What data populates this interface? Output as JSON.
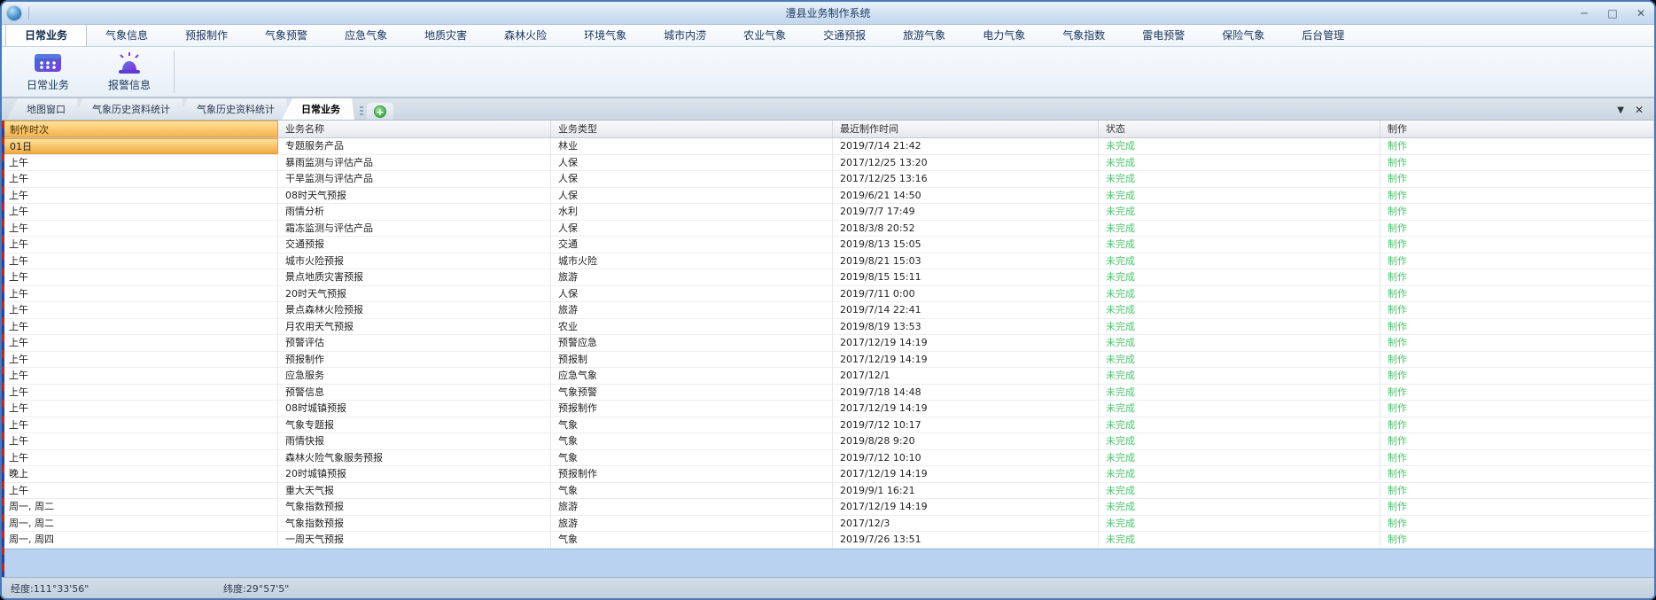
{
  "window": {
    "title": "澧县业务制作系统",
    "minimize_glyph": "─",
    "maximize_glyph": "□",
    "close_glyph": "✕"
  },
  "menu_items": [
    {
      "label": "日常业务",
      "active": true
    },
    {
      "label": "气象信息",
      "active": false
    },
    {
      "label": "预报制作",
      "active": false
    },
    {
      "label": "气象预警",
      "active": false
    },
    {
      "label": "应急气象",
      "active": false
    },
    {
      "label": "地质灾害",
      "active": false
    },
    {
      "label": "森林火险",
      "active": false
    },
    {
      "label": "环境气象",
      "active": false
    },
    {
      "label": "城市内涝",
      "active": false
    },
    {
      "label": "农业气象",
      "active": false
    },
    {
      "label": "交通预报",
      "active": false
    },
    {
      "label": "旅游气象",
      "active": false
    },
    {
      "label": "电力气象",
      "active": false
    },
    {
      "label": "气象指数",
      "active": false
    },
    {
      "label": "雷电预警",
      "active": false
    },
    {
      "label": "保险气象",
      "active": false
    },
    {
      "label": "后台管理",
      "active": false
    }
  ],
  "toolbar": {
    "buttons": [
      {
        "label": "日常业务",
        "icon": "calendar-grid-icon"
      },
      {
        "label": "报警信息",
        "icon": "alarm-siren-icon"
      }
    ]
  },
  "doc_tabs": {
    "tabs": [
      {
        "label": "地图窗口",
        "active": false
      },
      {
        "label": "气象历史资料统计",
        "active": false
      },
      {
        "label": "气象历史资料统计",
        "active": false
      },
      {
        "label": "日常业务",
        "active": true
      }
    ],
    "add_glyph": "+",
    "collapse_glyph": "▼",
    "close_glyph": "✕"
  },
  "table": {
    "columns": [
      "制作时次",
      "业务名称",
      "业务类型",
      "最近制作时间",
      "状态",
      "制作"
    ],
    "rows": [
      {
        "time": "01日",
        "name": "专题服务产品",
        "type": "林业",
        "last": "2019/7/14 21:42",
        "status": "未完成",
        "action": "制作"
      },
      {
        "time": "上午",
        "name": "暴雨监测与评估产品",
        "type": "人保",
        "last": "2017/12/25 13:20",
        "status": "未完成",
        "action": "制作"
      },
      {
        "time": "上午",
        "name": "干旱监测与评估产品",
        "type": "人保",
        "last": "2017/12/25 13:16",
        "status": "未完成",
        "action": "制作"
      },
      {
        "time": "上午",
        "name": "08时天气预报",
        "type": "人保",
        "last": "2019/6/21 14:50",
        "status": "未完成",
        "action": "制作"
      },
      {
        "time": "上午",
        "name": "雨情分析",
        "type": "水利",
        "last": "2019/7/7 17:49",
        "status": "未完成",
        "action": "制作"
      },
      {
        "time": "上午",
        "name": "霜冻监测与评估产品",
        "type": "人保",
        "last": "2018/3/8 20:52",
        "status": "未完成",
        "action": "制作"
      },
      {
        "time": "上午",
        "name": "交通预报",
        "type": "交通",
        "last": "2019/8/13 15:05",
        "status": "未完成",
        "action": "制作"
      },
      {
        "time": "上午",
        "name": "城市火险预报",
        "type": "城市火险",
        "last": "2019/8/21 15:03",
        "status": "未完成",
        "action": "制作"
      },
      {
        "time": "上午",
        "name": "景点地质灾害预报",
        "type": "旅游",
        "last": "2019/8/15 15:11",
        "status": "未完成",
        "action": "制作"
      },
      {
        "time": "上午",
        "name": "20时天气预报",
        "type": "人保",
        "last": "2019/7/11 0:00",
        "status": "未完成",
        "action": "制作"
      },
      {
        "time": "上午",
        "name": "景点森林火险预报",
        "type": "旅游",
        "last": "2019/7/14 22:41",
        "status": "未完成",
        "action": "制作"
      },
      {
        "time": "上午",
        "name": "月农用天气预报",
        "type": "农业",
        "last": "2019/8/19 13:53",
        "status": "未完成",
        "action": "制作"
      },
      {
        "time": "上午",
        "name": "预警评估",
        "type": "预警应急",
        "last": "2017/12/19 14:19",
        "status": "未完成",
        "action": "制作"
      },
      {
        "time": "上午",
        "name": "预报制作",
        "type": "预报制",
        "last": "2017/12/19 14:19",
        "status": "未完成",
        "action": "制作"
      },
      {
        "time": "上午",
        "name": "应急服务",
        "type": "应急气象",
        "last": "2017/12/1",
        "status": "未完成",
        "action": "制作"
      },
      {
        "time": "上午",
        "name": "预警信息",
        "type": "气象预警",
        "last": "2019/7/18 14:48",
        "status": "未完成",
        "action": "制作"
      },
      {
        "time": "上午",
        "name": "08时城镇预报",
        "type": "预报制作",
        "last": "2017/12/19 14:19",
        "status": "未完成",
        "action": "制作"
      },
      {
        "time": "上午",
        "name": "气象专题报",
        "type": "气象",
        "last": "2019/7/12 10:17",
        "status": "未完成",
        "action": "制作"
      },
      {
        "time": "上午",
        "name": "雨情快报",
        "type": "气象",
        "last": "2019/8/28 9:20",
        "status": "未完成",
        "action": "制作"
      },
      {
        "time": "上午",
        "name": "森林火险气象服务预报",
        "type": "气象",
        "last": "2019/7/12 10:10",
        "status": "未完成",
        "action": "制作"
      },
      {
        "time": "晚上",
        "name": "20时城镇预报",
        "type": "预报制作",
        "last": "2017/12/19 14:19",
        "status": "未完成",
        "action": "制作"
      },
      {
        "time": "上午",
        "name": "重大天气报",
        "type": "气象",
        "last": "2019/9/1 16:21",
        "status": "未完成",
        "action": "制作"
      },
      {
        "time": "周一, 周二",
        "name": "气象指数预报",
        "type": "旅游",
        "last": "2017/12/19 14:19",
        "status": "未完成",
        "action": "制作"
      },
      {
        "time": "周一, 周二",
        "name": "气象指数预报",
        "type": "旅游",
        "last": "2017/12/3",
        "status": "未完成",
        "action": "制作"
      },
      {
        "time": "周一, 周四",
        "name": "一周天气预报",
        "type": "气象",
        "last": "2019/7/26 13:51",
        "status": "未完成",
        "action": "制作"
      }
    ]
  },
  "status_bar": {
    "longitude": "经度:111°33'56\"",
    "latitude": "纬度:29°57'5\""
  },
  "colors": {
    "status_green": "#4cc36a",
    "selected_header_top": "#fde39b",
    "selected_header_bottom": "#f6b34f",
    "selection_row_blue": "#b9d2ef",
    "titlebar_blue": "#cfe0f2"
  }
}
